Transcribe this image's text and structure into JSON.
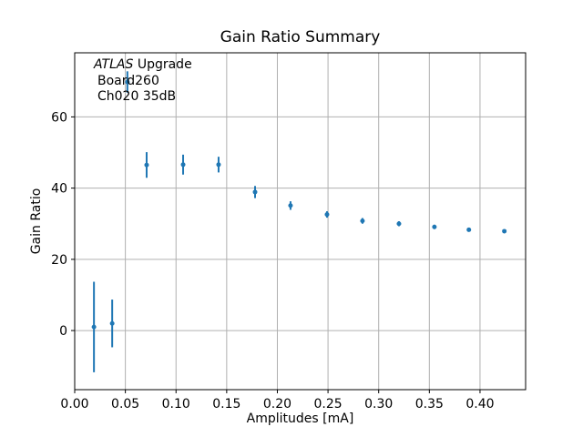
{
  "chart_data": {
    "type": "scatter",
    "title": "Gain Ratio Summary",
    "xlabel": "Amplitudes [mA]",
    "ylabel": "Gain Ratio",
    "annotation": {
      "line1_italic": "ATLAS",
      "line1_rest": " Upgrade",
      "line2": "Board260",
      "line3": "Ch020 35dB"
    },
    "xlim": [
      0.0,
      0.445
    ],
    "ylim": [
      -16.6,
      78.0
    ],
    "xtick_labels": [
      "0.00",
      "0.05",
      "0.10",
      "0.15",
      "0.20",
      "0.25",
      "0.30",
      "0.35",
      "0.40"
    ],
    "xtick_values": [
      0.0,
      0.05,
      0.1,
      0.15,
      0.2,
      0.25,
      0.3,
      0.35,
      0.4
    ],
    "ytick_labels": [
      "0",
      "20",
      "40",
      "60"
    ],
    "ytick_values": [
      0,
      20,
      40,
      60
    ],
    "grid": true,
    "legend": false,
    "colors": {
      "marker": "#1f77b4",
      "grid": "#b0b0b0",
      "spine": "#000000",
      "text": "#000000",
      "background": "#ffffff"
    },
    "points": [
      {
        "x": 0.019,
        "y": 1.0,
        "yerr": 12.7
      },
      {
        "x": 0.037,
        "y": 2.0,
        "yerr": 6.7
      },
      {
        "x": 0.052,
        "y": 69.8,
        "yerr": 3.0
      },
      {
        "x": 0.071,
        "y": 46.5,
        "yerr": 3.6
      },
      {
        "x": 0.107,
        "y": 46.6,
        "yerr": 2.8
      },
      {
        "x": 0.142,
        "y": 46.6,
        "yerr": 2.2
      },
      {
        "x": 0.178,
        "y": 38.9,
        "yerr": 1.7
      },
      {
        "x": 0.213,
        "y": 35.1,
        "yerr": 1.2
      },
      {
        "x": 0.249,
        "y": 32.6,
        "yerr": 0.9
      },
      {
        "x": 0.284,
        "y": 30.8,
        "yerr": 0.8
      },
      {
        "x": 0.32,
        "y": 30.0,
        "yerr": 0.7
      },
      {
        "x": 0.355,
        "y": 29.1,
        "yerr": 0.6
      },
      {
        "x": 0.389,
        "y": 28.3,
        "yerr": 0.5
      },
      {
        "x": 0.424,
        "y": 27.9,
        "yerr": 0.4
      }
    ]
  }
}
